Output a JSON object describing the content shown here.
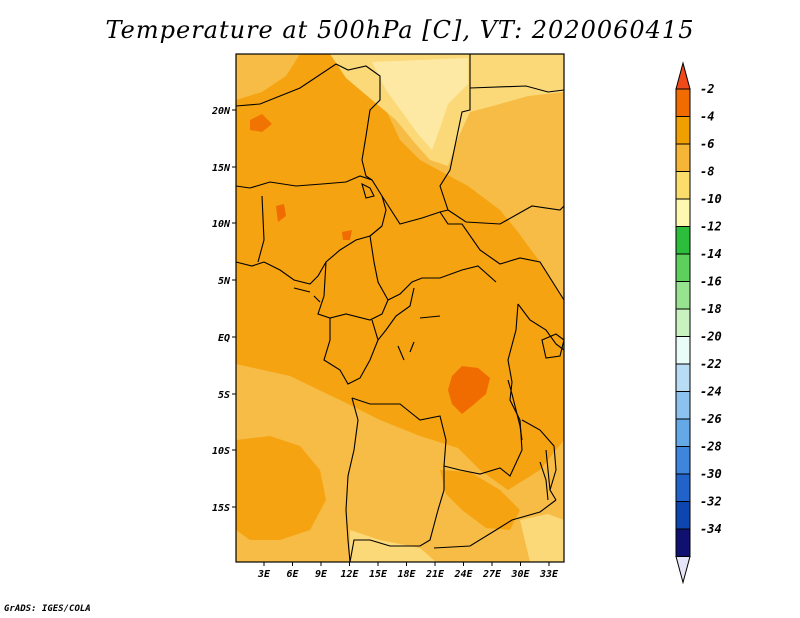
{
  "title": "Temperature at 500hPa [C], VT: 2020060415",
  "credit": "GrADS: IGES/COLA",
  "map": {
    "lat_labels": [
      "20N",
      "15N",
      "10N",
      "5N",
      "EQ",
      "5S",
      "10S",
      "15S"
    ],
    "lon_labels": [
      "3E",
      "6E",
      "9E",
      "12E",
      "15E",
      "18E",
      "21E",
      "24E",
      "27E",
      "30E",
      "33E"
    ]
  },
  "colorbar": {
    "labels": [
      "-2",
      "-4",
      "-6",
      "-8",
      "-10",
      "-12",
      "-14",
      "-16",
      "-18",
      "-20",
      "-22",
      "-24",
      "-26",
      "-28",
      "-30",
      "-32",
      "-34"
    ],
    "colors": [
      "#f04a1a",
      "#f06c00",
      "#f09f00",
      "#f5b638",
      "#fcdc6a",
      "#fff8b0",
      "#2dbd3c",
      "#5ccf5c",
      "#97e38f",
      "#c9f2c0",
      "#eafcf8",
      "#b9dcf5",
      "#8cc2ee",
      "#64a8e6",
      "#3e86dc",
      "#2163c8",
      "#0c46ae",
      "#101070",
      "#e6e6f8"
    ]
  }
}
